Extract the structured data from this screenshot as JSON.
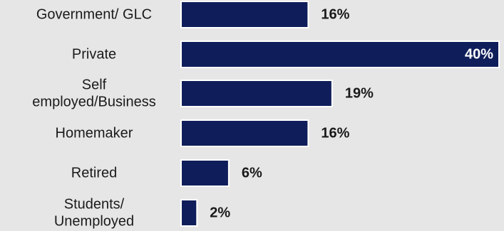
{
  "chart_data": {
    "type": "bar",
    "orientation": "horizontal",
    "categories": [
      [
        "Government/ GLC"
      ],
      [
        "Private"
      ],
      [
        "Self",
        "employed/Business"
      ],
      [
        "Homemaker"
      ],
      [
        "Retired"
      ],
      [
        "Students/",
        "Unemployed"
      ]
    ],
    "values": [
      16,
      40,
      19,
      16,
      6,
      2
    ],
    "value_labels": [
      "16%",
      "40%",
      "19%",
      "16%",
      "6%",
      "2%"
    ],
    "xlim": [
      0,
      40
    ],
    "grid": false,
    "colors": {
      "bar": "#0f1e5a",
      "background": "#e6e6e6",
      "text": "#1a1a1a",
      "inside_text": "#ffffff"
    }
  }
}
